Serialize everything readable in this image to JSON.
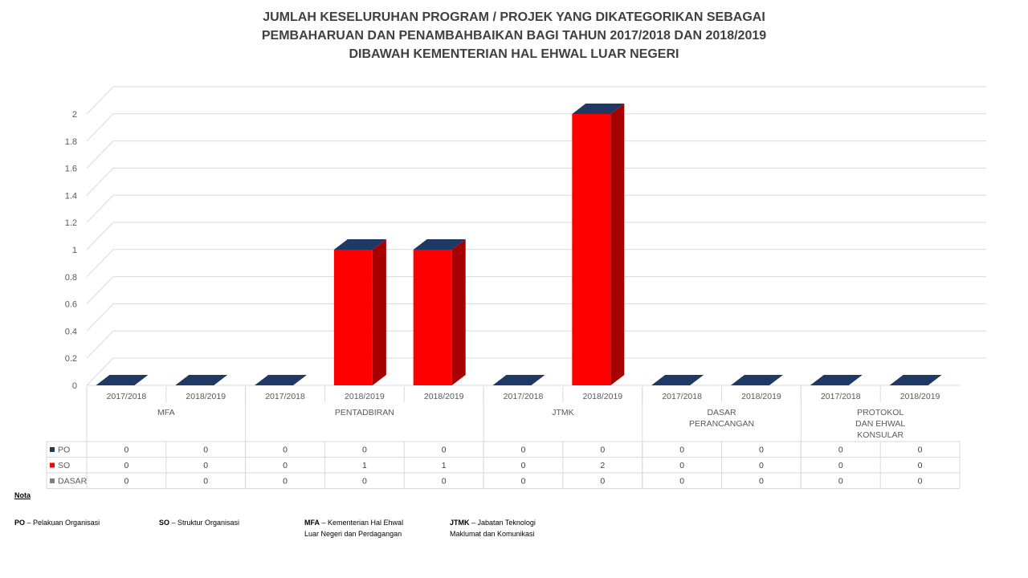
{
  "title": {
    "line1": "JUMLAH KESELURUHAN PROGRAM / PROJEK YANG DIKATEGORIKAN SEBAGAI",
    "line2": "PEMBAHARUAN DAN PENAMBAHBAIKAN BAGI TAHUN 2017/2018 DAN 2018/2019",
    "line3": "DIBAWAH KEMENTERIAN HAL EHWAL LUAR NEGERI"
  },
  "chart_data": {
    "type": "bar",
    "variant": "3d-stacked-column-with-data-table",
    "yticks": [
      "0",
      "0.2",
      "0.4",
      "0.6",
      "0.8",
      "1",
      "1.2",
      "1.4",
      "1.6",
      "1.8",
      "2"
    ],
    "ylim": [
      0,
      2
    ],
    "grid": true,
    "categories": [
      "2017/2018",
      "2018/2019",
      "2017/2018",
      "2018/2019",
      "2018/2019",
      "2017/2018",
      "2018/2019",
      "2017/2018",
      "2018/2019",
      "2017/2018",
      "2018/2019"
    ],
    "groups": [
      {
        "label": [
          "MFA"
        ],
        "span": 2
      },
      {
        "label": [
          "PENTADBIRAN"
        ],
        "span": 3
      },
      {
        "label": [
          "JTMK"
        ],
        "span": 2
      },
      {
        "label": [
          "DASAR",
          "PERANCANGAN"
        ],
        "span": 2
      },
      {
        "label": [
          "PROTOKOL",
          "DAN EHWAL",
          "KONSULAR"
        ],
        "span": 2
      }
    ],
    "series": [
      {
        "name": "PO",
        "color": "#1f3864",
        "values": [
          0,
          0,
          0,
          0,
          0,
          0,
          0,
          0,
          0,
          0,
          0
        ]
      },
      {
        "name": "SO",
        "color": "#ff0000",
        "values": [
          0,
          0,
          0,
          1,
          1,
          0,
          2,
          0,
          0,
          0,
          0
        ]
      },
      {
        "name": "DASAR",
        "color": "#7f7f7f",
        "values": [
          0,
          0,
          0,
          0,
          0,
          0,
          0,
          0,
          0,
          0,
          0
        ]
      }
    ],
    "legend_placement": "data-table"
  },
  "notes": {
    "heading": "Nota",
    "items": [
      {
        "abbr": "PO",
        "sep": " – ",
        "lines": [
          "Pelakuan Organisasi"
        ]
      },
      {
        "abbr": "SO",
        "sep": " – ",
        "lines": [
          "Struktur Organisasi"
        ]
      },
      {
        "abbr": "MFA",
        "sep": " – ",
        "lines": [
          "Kementerian Hal Ehwal",
          "Luar Negeri dan Perdagangan"
        ]
      },
      {
        "abbr": "JTMK",
        "sep": " – ",
        "lines": [
          "Jabatan Teknologi",
          "Maklumat dan Komunikasi"
        ]
      }
    ]
  }
}
